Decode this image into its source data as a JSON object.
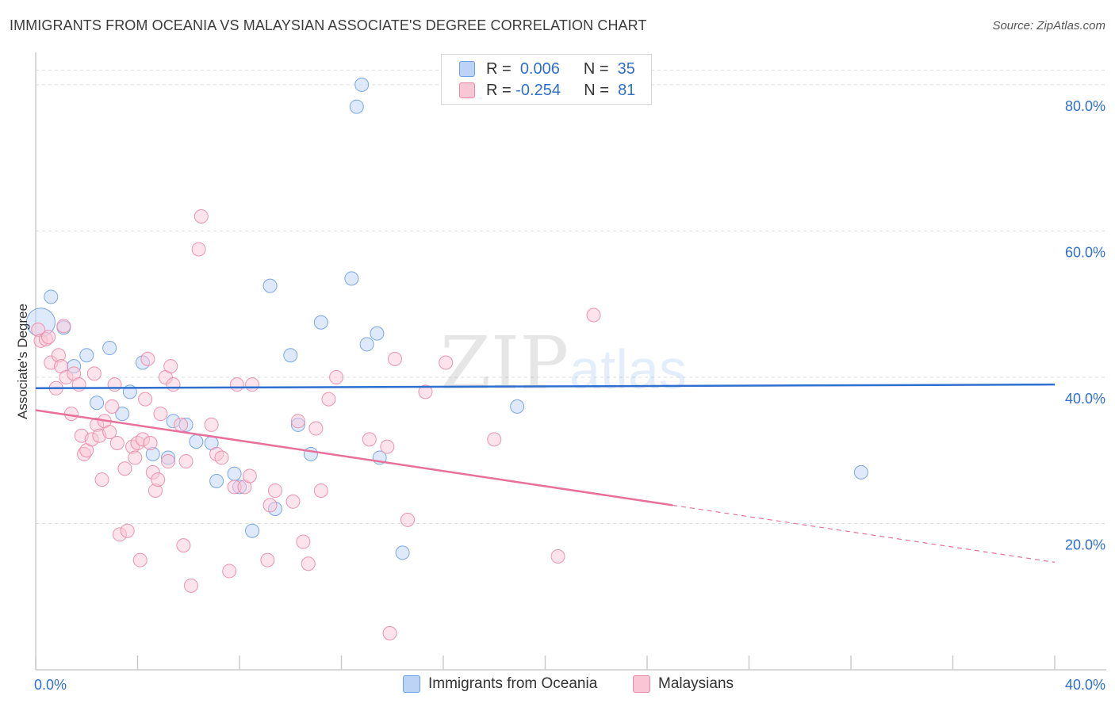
{
  "title": "IMMIGRANTS FROM OCEANIA VS MALAYSIAN ASSOCIATE'S DEGREE CORRELATION CHART",
  "source": "Source: ZipAtlas.com",
  "watermark": {
    "zip": "ZIP",
    "atlas": "atlas"
  },
  "legend": {
    "rows": [
      {
        "r_label": "R =",
        "r_value": "0.006",
        "n_label": "N =",
        "n_value": "35"
      },
      {
        "r_label": "R =",
        "r_value": "-0.254",
        "n_label": "N =",
        "n_value": "81"
      }
    ]
  },
  "bottom_legend": {
    "series1": "Immigrants from Oceania",
    "series2": "Malaysians"
  },
  "chart_data": {
    "type": "scatter",
    "title": "IMMIGRANTS FROM OCEANIA VS MALAYSIAN ASSOCIATE'S DEGREE CORRELATION CHART",
    "xlabel": "",
    "ylabel": "Associate's Degree",
    "xlim": [
      0,
      40
    ],
    "ylim": [
      0,
      84
    ],
    "x_tick_labels": [
      "0.0%",
      "40.0%"
    ],
    "y_ticks": [
      20,
      40,
      60,
      80
    ],
    "y_tick_labels": [
      "20.0%",
      "40.0%",
      "60.0%",
      "80.0%"
    ],
    "grid": true,
    "colors": {
      "Immigrants from Oceania": "#6d9ee6",
      "Malaysians": "#eb89a8",
      "blue_line": "#2f6fcf",
      "pink_line": "#e8709a"
    },
    "series": [
      {
        "name": "Immigrants from Oceania",
        "points": [
          [
            0.2,
            47.5
          ],
          [
            0.6,
            51.0
          ],
          [
            1.1,
            46.8
          ],
          [
            1.5,
            41.5
          ],
          [
            2.0,
            43.0
          ],
          [
            2.4,
            36.5
          ],
          [
            2.9,
            44.0
          ],
          [
            3.4,
            35.0
          ],
          [
            3.7,
            38.0
          ],
          [
            4.2,
            42.0
          ],
          [
            4.6,
            29.5
          ],
          [
            5.2,
            29.0
          ],
          [
            5.4,
            34.0
          ],
          [
            5.9,
            33.5
          ],
          [
            6.3,
            31.2
          ],
          [
            6.9,
            31.0
          ],
          [
            7.1,
            25.8
          ],
          [
            7.8,
            26.8
          ],
          [
            8.0,
            25.0
          ],
          [
            8.5,
            19.0
          ],
          [
            9.2,
            52.5
          ],
          [
            9.4,
            22.0
          ],
          [
            10.0,
            43.0
          ],
          [
            10.3,
            33.5
          ],
          [
            10.8,
            29.5
          ],
          [
            11.2,
            47.5
          ],
          [
            12.4,
            53.5
          ],
          [
            12.6,
            77.0
          ],
          [
            12.8,
            80.0
          ],
          [
            13.0,
            44.5
          ],
          [
            13.4,
            46.0
          ],
          [
            13.5,
            29.0
          ],
          [
            14.4,
            16.0
          ],
          [
            18.9,
            36.0
          ],
          [
            32.4,
            27.0
          ]
        ]
      },
      {
        "name": "Malaysians",
        "points": [
          [
            0.1,
            46.5
          ],
          [
            0.2,
            45.0
          ],
          [
            0.4,
            45.2
          ],
          [
            0.5,
            45.5
          ],
          [
            0.6,
            42.0
          ],
          [
            0.8,
            38.5
          ],
          [
            0.9,
            43.0
          ],
          [
            1.0,
            41.5
          ],
          [
            1.1,
            47.0
          ],
          [
            1.2,
            40.0
          ],
          [
            1.4,
            35.0
          ],
          [
            1.5,
            40.5
          ],
          [
            1.7,
            39.0
          ],
          [
            1.8,
            32.0
          ],
          [
            1.9,
            29.5
          ],
          [
            2.0,
            30.0
          ],
          [
            2.2,
            31.5
          ],
          [
            2.3,
            40.5
          ],
          [
            2.4,
            33.5
          ],
          [
            2.5,
            32.0
          ],
          [
            2.6,
            26.0
          ],
          [
            2.7,
            34.0
          ],
          [
            2.9,
            32.5
          ],
          [
            3.0,
            36.0
          ],
          [
            3.1,
            39.0
          ],
          [
            3.2,
            31.0
          ],
          [
            3.3,
            18.5
          ],
          [
            3.5,
            27.5
          ],
          [
            3.6,
            19.0
          ],
          [
            3.8,
            30.5
          ],
          [
            3.9,
            29.0
          ],
          [
            4.0,
            31.0
          ],
          [
            4.1,
            15.0
          ],
          [
            4.2,
            31.5
          ],
          [
            4.3,
            37.0
          ],
          [
            4.4,
            42.5
          ],
          [
            4.5,
            31.0
          ],
          [
            4.6,
            27.0
          ],
          [
            4.7,
            24.5
          ],
          [
            4.8,
            26.0
          ],
          [
            4.9,
            35.0
          ],
          [
            5.1,
            40.0
          ],
          [
            5.2,
            28.5
          ],
          [
            5.3,
            41.5
          ],
          [
            5.4,
            39.0
          ],
          [
            5.7,
            33.5
          ],
          [
            5.8,
            17.0
          ],
          [
            5.9,
            28.5
          ],
          [
            6.1,
            11.5
          ],
          [
            6.4,
            57.5
          ],
          [
            6.5,
            62.0
          ],
          [
            6.9,
            33.5
          ],
          [
            7.1,
            29.5
          ],
          [
            7.3,
            29.0
          ],
          [
            7.6,
            13.5
          ],
          [
            7.8,
            25.0
          ],
          [
            7.9,
            39.0
          ],
          [
            8.2,
            25.0
          ],
          [
            8.4,
            26.5
          ],
          [
            8.5,
            39.0
          ],
          [
            9.1,
            15.0
          ],
          [
            9.2,
            22.5
          ],
          [
            9.4,
            24.5
          ],
          [
            10.1,
            23.0
          ],
          [
            10.3,
            34.0
          ],
          [
            10.5,
            17.5
          ],
          [
            10.7,
            14.5
          ],
          [
            11.0,
            33.0
          ],
          [
            11.2,
            24.5
          ],
          [
            11.8,
            40.0
          ],
          [
            13.1,
            31.5
          ],
          [
            13.8,
            30.5
          ],
          [
            13.9,
            5.0
          ],
          [
            14.1,
            42.5
          ],
          [
            14.6,
            20.5
          ],
          [
            15.3,
            38.0
          ],
          [
            16.1,
            42.0
          ],
          [
            18.0,
            31.5
          ],
          [
            20.5,
            15.5
          ],
          [
            21.9,
            48.5
          ],
          [
            11.5,
            37.0
          ]
        ]
      }
    ],
    "trend_lines": [
      {
        "name": "Immigrants from Oceania",
        "x0": 0,
        "y0": 38.5,
        "x1": 40,
        "y1": 39.0
      },
      {
        "name": "Malaysians",
        "x0": 0,
        "y0": 35.5,
        "x1": 25,
        "y1": 22.5,
        "dashed_to_x": 40,
        "dashed_to_y": 14.7
      }
    ]
  }
}
